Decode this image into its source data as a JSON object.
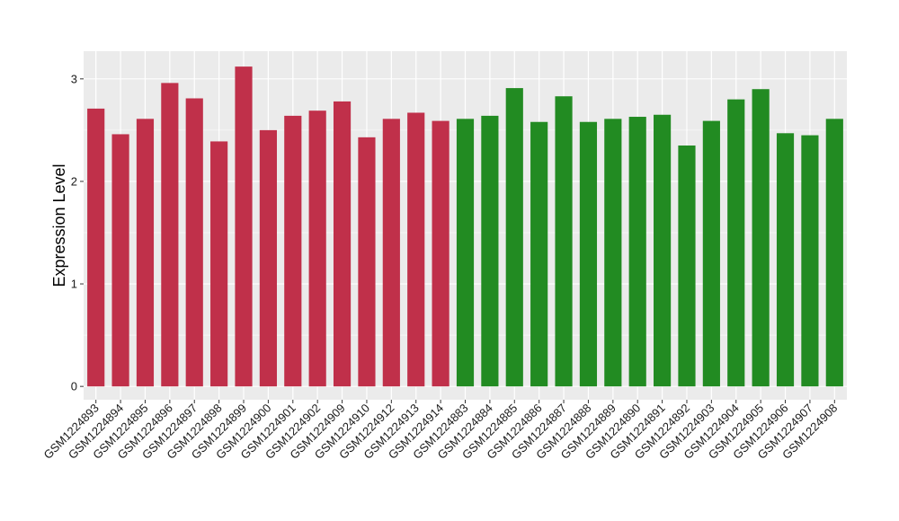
{
  "chart_data": {
    "type": "bar",
    "xlabel": "",
    "ylabel": "Expression Level",
    "ylim": [
      -0.13,
      3.27
    ],
    "yticks": [
      0,
      1,
      2,
      3
    ],
    "ytick_labels": [
      "0",
      "1",
      "2",
      "3"
    ],
    "grid": true,
    "legend": "none",
    "colors": {
      "group1": "#c0304a",
      "group2": "#228b22",
      "panel_bg": "#ebebeb",
      "grid": "#ffffff"
    },
    "categories": [
      "GSM1224893",
      "GSM1224894",
      "GSM1224895",
      "GSM1224896",
      "GSM1224897",
      "GSM1224898",
      "GSM1224899",
      "GSM1224900",
      "GSM1224901",
      "GSM1224902",
      "GSM1224909",
      "GSM1224910",
      "GSM1224912",
      "GSM1224913",
      "GSM1224914",
      "GSM1224883",
      "GSM1224884",
      "GSM1224885",
      "GSM1224886",
      "GSM1224887",
      "GSM1224888",
      "GSM1224889",
      "GSM1224890",
      "GSM1224891",
      "GSM1224892",
      "GSM1224903",
      "GSM1224904",
      "GSM1224905",
      "GSM1224906",
      "GSM1224907",
      "GSM1224908"
    ],
    "values": [
      2.71,
      2.46,
      2.61,
      2.96,
      2.81,
      2.39,
      3.12,
      2.5,
      2.64,
      2.69,
      2.78,
      2.43,
      2.61,
      2.67,
      2.59,
      2.61,
      2.64,
      2.91,
      2.58,
      2.83,
      2.58,
      2.61,
      2.63,
      2.65,
      2.35,
      2.59,
      2.8,
      2.9,
      2.47,
      2.45,
      2.61
    ],
    "groups": [
      "group1",
      "group1",
      "group1",
      "group1",
      "group1",
      "group1",
      "group1",
      "group1",
      "group1",
      "group1",
      "group1",
      "group1",
      "group1",
      "group1",
      "group1",
      "group2",
      "group2",
      "group2",
      "group2",
      "group2",
      "group2",
      "group2",
      "group2",
      "group2",
      "group2",
      "group2",
      "group2",
      "group2",
      "group2",
      "group2",
      "group2"
    ]
  }
}
